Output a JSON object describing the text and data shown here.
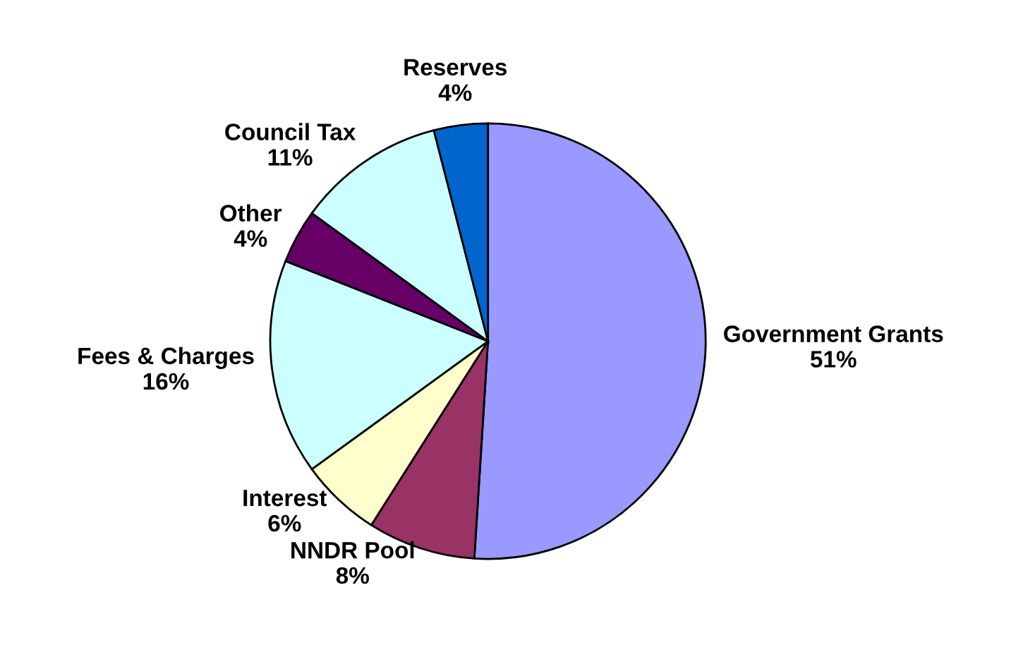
{
  "chart_data": {
    "type": "pie",
    "categories": [
      "Government Grants",
      "NNDR Pool",
      "Interest",
      "Fees & Charges",
      "Other",
      "Council Tax",
      "Reserves"
    ],
    "values": [
      51,
      8,
      6,
      16,
      4,
      11,
      4
    ],
    "colors": [
      "#9999ff",
      "#993366",
      "#ffffcc",
      "#ccffff",
      "#660066",
      "#ccffff",
      "#0066cc"
    ],
    "value_labels": [
      "51%",
      "8%",
      "6%",
      "16%",
      "4%",
      "11%",
      "4%"
    ],
    "legend": false
  }
}
